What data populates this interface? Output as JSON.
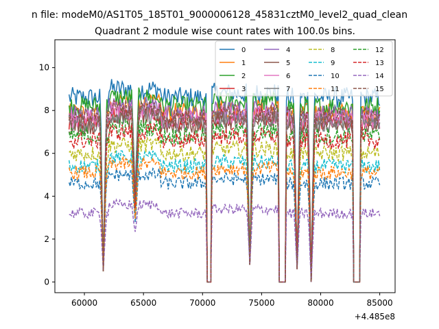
{
  "chart_data": {
    "type": "line",
    "suptitle": "n file: modeM0/AS1T05_185T01_9000006128_45831cztM0_level2_quad_clean",
    "title": "Quadrant 2 module wise count rates with 100.0s bins.",
    "xlabel": "",
    "ylabel": "",
    "x_offset_label": "+4.485e8",
    "x_ticks": [
      60000,
      65000,
      70000,
      75000,
      80000,
      85000
    ],
    "y_ticks": [
      0,
      2,
      4,
      6,
      8,
      10
    ],
    "xlim": [
      57500,
      86300
    ],
    "ylim": [
      -0.5,
      11.3
    ],
    "x_range": [
      58700,
      85000
    ],
    "legend_position": "top-right",
    "gaps": [
      [
        70400,
        70700
      ],
      [
        76500,
        77000
      ],
      [
        82800,
        83300
      ]
    ],
    "dips": [
      [
        61600,
        0.5
      ],
      [
        64300,
        1.3
      ],
      [
        74000,
        0.8
      ],
      [
        79200,
        0.0
      ],
      [
        78000,
        0.6
      ]
    ],
    "series": [
      {
        "name": "0",
        "color": "#1f77b4",
        "dash": "solid",
        "level": 8.6
      },
      {
        "name": "1",
        "color": "#ff7f0e",
        "dash": "solid",
        "level": 7.9
      },
      {
        "name": "2",
        "color": "#2ca02c",
        "dash": "solid",
        "level": 8.2
      },
      {
        "name": "3",
        "color": "#d62728",
        "dash": "solid",
        "level": 7.5
      },
      {
        "name": "4",
        "color": "#9467bd",
        "dash": "solid",
        "level": 7.8
      },
      {
        "name": "5",
        "color": "#8c564b",
        "dash": "solid",
        "level": 7.3
      },
      {
        "name": "6",
        "color": "#e377c2",
        "dash": "solid",
        "level": 7.6
      },
      {
        "name": "7",
        "color": "#7f7f7f",
        "dash": "solid",
        "level": 7.4
      },
      {
        "name": "8",
        "color": "#bcbd22",
        "dash": "dashed",
        "level": 6.0
      },
      {
        "name": "9",
        "color": "#17becf",
        "dash": "dashed",
        "level": 5.4
      },
      {
        "name": "10",
        "color": "#1f77b4",
        "dash": "dashed",
        "level": 4.6
      },
      {
        "name": "11",
        "color": "#ff7f0e",
        "dash": "dashed",
        "level": 5.1
      },
      {
        "name": "12",
        "color": "#2ca02c",
        "dash": "dashed",
        "level": 6.8
      },
      {
        "name": "13",
        "color": "#d62728",
        "dash": "dashed",
        "level": 6.6
      },
      {
        "name": "14",
        "color": "#9467bd",
        "dash": "dashed",
        "level": 3.2
      },
      {
        "name": "15",
        "color": "#8c564b",
        "dash": "dashed",
        "level": 7.7
      }
    ]
  }
}
